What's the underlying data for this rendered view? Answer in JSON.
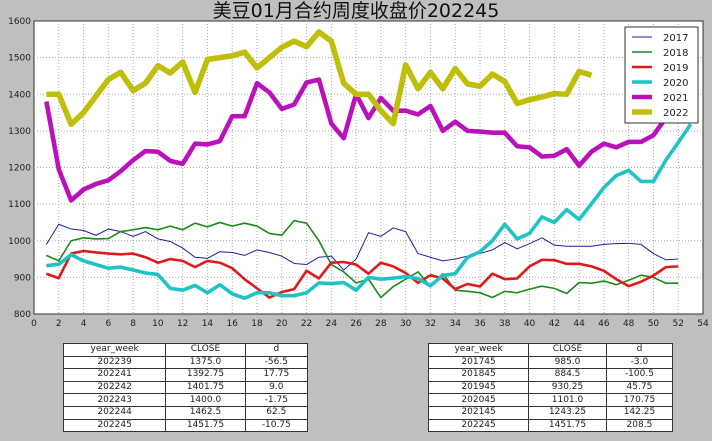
{
  "chart_data": {
    "type": "line",
    "title": "美豆01月合约周度收盘价202245",
    "xlabel": "",
    "ylabel": "",
    "xlim": [
      0,
      54
    ],
    "ylim": [
      800,
      1600
    ],
    "xticks": [
      0,
      2,
      4,
      6,
      8,
      10,
      12,
      14,
      16,
      18,
      20,
      22,
      24,
      26,
      28,
      30,
      32,
      34,
      36,
      38,
      40,
      42,
      44,
      46,
      48,
      50,
      52,
      54
    ],
    "yticks": [
      800,
      900,
      1000,
      1100,
      1200,
      1300,
      1400,
      1500,
      1600
    ],
    "grid": true,
    "legend_position": "top-right",
    "series": [
      {
        "name": "2017",
        "color": "#1f1f9e",
        "width": 1,
        "values": [
          990,
          1045,
          1032,
          1028,
          1015,
          1032,
          1025,
          1012,
          1025,
          1005,
          998,
          980,
          955,
          952,
          970,
          968,
          960,
          975,
          968,
          958,
          938,
          935,
          955,
          958,
          920,
          950,
          1022,
          1012,
          1035,
          1025,
          965,
          955,
          945,
          950,
          958,
          965,
          975,
          995,
          978,
          992,
          1008,
          988,
          985,
          985,
          985,
          990,
          992,
          993,
          990,
          965,
          948,
          950
        ]
      },
      {
        "name": "2018",
        "color": "#1a8a1a",
        "width": 1.6,
        "values": [
          960,
          945,
          1000,
          1008,
          1005,
          1006,
          1025,
          1030,
          1036,
          1030,
          1040,
          1030,
          1048,
          1038,
          1050,
          1040,
          1048,
          1040,
          1020,
          1015,
          1055,
          1048,
          1000,
          935,
          915,
          885,
          895,
          845,
          875,
          895,
          915,
          875,
          910,
          865,
          862,
          858,
          845,
          862,
          858,
          868,
          876,
          870,
          856,
          886,
          884,
          890,
          880,
          892,
          906,
          900,
          884,
          884
        ]
      },
      {
        "name": "2019",
        "color": "#e01a1a",
        "width": 2.6,
        "values": [
          910,
          898,
          965,
          972,
          968,
          965,
          963,
          965,
          955,
          940,
          950,
          945,
          928,
          945,
          940,
          925,
          895,
          870,
          845,
          860,
          868,
          918,
          897,
          940,
          942,
          935,
          910,
          940,
          930,
          912,
          885,
          906,
          897,
          868,
          882,
          875,
          910,
          895,
          897,
          930,
          948,
          947,
          937,
          937,
          930,
          918,
          895,
          876,
          888,
          905,
          928,
          930
        ]
      },
      {
        "name": "2020",
        "color": "#1ec4c4",
        "width": 3.6,
        "values": [
          932,
          936,
          962,
          945,
          935,
          925,
          928,
          920,
          912,
          908,
          870,
          865,
          878,
          858,
          880,
          855,
          843,
          858,
          858,
          850,
          850,
          858,
          885,
          883,
          886,
          865,
          900,
          895,
          898,
          902,
          897,
          877,
          905,
          910,
          955,
          970,
          1000,
          1045,
          1005,
          1020,
          1065,
          1050,
          1085,
          1058,
          1101,
          1145,
          1178,
          1192,
          1162,
          1162,
          1220,
          1268,
          1318
        ]
      },
      {
        "name": "2021",
        "color": "#bb10bb",
        "width": 4.6,
        "values": [
          1380,
          1195,
          1110,
          1140,
          1155,
          1165,
          1190,
          1220,
          1245,
          1243,
          1218,
          1210,
          1265,
          1263,
          1272,
          1340,
          1340,
          1430,
          1405,
          1360,
          1372,
          1432,
          1440,
          1320,
          1280,
          1400,
          1335,
          1390,
          1355,
          1355,
          1345,
          1368,
          1300,
          1325,
          1300,
          1298,
          1295,
          1295,
          1258,
          1255,
          1230,
          1232,
          1250,
          1205,
          1243.25,
          1265,
          1255,
          1270,
          1270,
          1288,
          1335,
          1330
        ]
      },
      {
        "name": "2022",
        "color": "#bfbf0a",
        "width": 5.6,
        "values": [
          1400,
          1400,
          1318,
          1350,
          1395,
          1440,
          1460,
          1410,
          1430,
          1478,
          1458,
          1488,
          1405,
          1495,
          1500,
          1505,
          1515,
          1472,
          1500,
          1528,
          1545,
          1530,
          1570,
          1545,
          1430,
          1400,
          1400,
          1355,
          1320,
          1480,
          1415,
          1460,
          1415,
          1470,
          1428,
          1422,
          1455,
          1435,
          1375,
          1385,
          1392.75,
          1401.75,
          1400,
          1462.5,
          1451.75
        ]
      }
    ]
  },
  "tables": {
    "left": {
      "headers": [
        "year_week",
        "CLOSE",
        "d"
      ],
      "rows": [
        [
          "202239",
          "1375.0",
          "-56.5"
        ],
        [
          "202241",
          "1392.75",
          "17.75"
        ],
        [
          "202242",
          "1401.75",
          "9.0"
        ],
        [
          "202243",
          "1400.0",
          "-1.75"
        ],
        [
          "202244",
          "1462.5",
          "62.5"
        ],
        [
          "202245",
          "1451.75",
          "-10.75"
        ]
      ]
    },
    "right": {
      "headers": [
        "year_week",
        "CLOSE",
        "d"
      ],
      "rows": [
        [
          "201745",
          "985.0",
          "-3.0"
        ],
        [
          "201845",
          "884.5",
          "-100.5"
        ],
        [
          "201945",
          "930.25",
          "45.75"
        ],
        [
          "202045",
          "1101.0",
          "170.75"
        ],
        [
          "202145",
          "1243.25",
          "142.25"
        ],
        [
          "202245",
          "1451.75",
          "208.5"
        ]
      ]
    }
  }
}
